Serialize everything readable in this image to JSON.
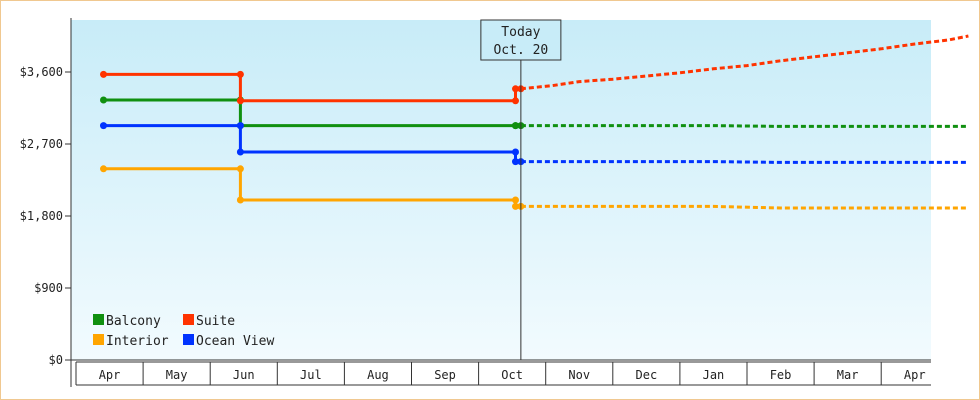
{
  "chart_data": {
    "type": "line",
    "style": "step",
    "title": "",
    "xlabel": "",
    "ylabel": "",
    "x_categories": [
      "Apr",
      "May",
      "Jun",
      "Jul",
      "Aug",
      "Sep",
      "Oct",
      "Nov",
      "Dec",
      "Jan",
      "Feb",
      "Mar",
      "Apr"
    ],
    "y_ticks": [
      "$0",
      "$900",
      "$1,800",
      "$2,700",
      "$3,600"
    ],
    "ylim": [
      0,
      4250
    ],
    "grid": false,
    "legend_position": "bottom-left",
    "today_marker": {
      "line1": "Today",
      "line2": "Oct. 20",
      "x": 6.13
    },
    "series": [
      {
        "name": "Balcony",
        "color": "#109010",
        "actual": [
          [
            -0.09,
            3250
          ],
          [
            1.95,
            3250
          ],
          [
            1.95,
            2930
          ],
          [
            6.05,
            2930
          ],
          [
            6.05,
            2930
          ],
          [
            6.13,
            2930
          ]
        ],
        "forecast": [
          [
            6.13,
            2930
          ],
          [
            7.0,
            2930
          ],
          [
            8.0,
            2930
          ],
          [
            9.0,
            2930
          ],
          [
            10.0,
            2920
          ],
          [
            11.0,
            2920
          ],
          [
            12.0,
            2920
          ],
          [
            12.8,
            2920
          ]
        ]
      },
      {
        "name": "Suite",
        "color": "#ff3300",
        "actual": [
          [
            -0.09,
            3570
          ],
          [
            1.95,
            3570
          ],
          [
            1.95,
            3240
          ],
          [
            6.05,
            3240
          ],
          [
            6.05,
            3390
          ],
          [
            6.13,
            3390
          ]
        ],
        "forecast": [
          [
            6.13,
            3390
          ],
          [
            6.6,
            3430
          ],
          [
            7.0,
            3480
          ],
          [
            7.5,
            3510
          ],
          [
            8.0,
            3550
          ],
          [
            8.5,
            3590
          ],
          [
            9.0,
            3640
          ],
          [
            9.5,
            3680
          ],
          [
            10.0,
            3740
          ],
          [
            10.5,
            3790
          ],
          [
            11.0,
            3840
          ],
          [
            11.5,
            3890
          ],
          [
            12.0,
            3950
          ],
          [
            12.5,
            4000
          ],
          [
            12.8,
            4050
          ]
        ]
      },
      {
        "name": "Interior",
        "color": "#ffa500",
        "actual": [
          [
            -0.09,
            2390
          ],
          [
            1.95,
            2390
          ],
          [
            1.95,
            2000
          ],
          [
            6.05,
            2000
          ],
          [
            6.05,
            1920
          ],
          [
            6.13,
            1920
          ]
        ],
        "forecast": [
          [
            6.13,
            1920
          ],
          [
            7.0,
            1920
          ],
          [
            8.0,
            1920
          ],
          [
            9.0,
            1920
          ],
          [
            10.0,
            1900
          ],
          [
            11.0,
            1900
          ],
          [
            12.0,
            1900
          ],
          [
            12.8,
            1900
          ]
        ]
      },
      {
        "name": "Ocean View",
        "color": "#0033ff",
        "actual": [
          [
            -0.09,
            2930
          ],
          [
            1.95,
            2930
          ],
          [
            1.95,
            2600
          ],
          [
            6.05,
            2600
          ],
          [
            6.05,
            2480
          ],
          [
            6.13,
            2480
          ]
        ],
        "forecast": [
          [
            6.13,
            2480
          ],
          [
            7.0,
            2480
          ],
          [
            8.0,
            2480
          ],
          [
            9.0,
            2480
          ],
          [
            10.0,
            2470
          ],
          [
            11.0,
            2470
          ],
          [
            12.0,
            2470
          ],
          [
            12.8,
            2470
          ]
        ]
      }
    ],
    "legend_order": [
      "Balcony",
      "Suite",
      "Interior",
      "Ocean View"
    ],
    "colors": {
      "plot_top": "#c8ecf8",
      "plot_bottom": "#f2fbfe",
      "frame": "#f0c890"
    }
  }
}
